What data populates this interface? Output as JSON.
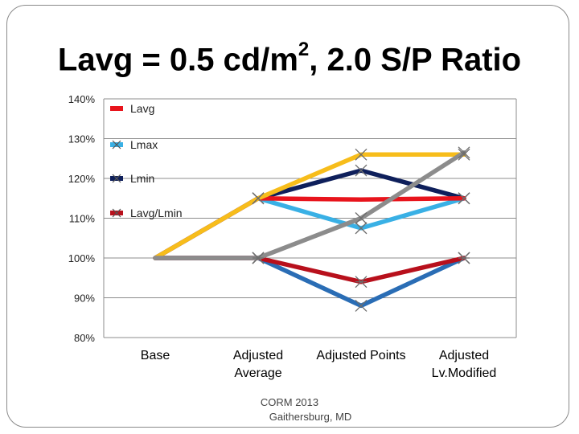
{
  "slide": {
    "title_main": "Lavg = 0.5 cd/m",
    "title_sup": "2",
    "title_rest": ", 2.0 S/P Ratio",
    "footer_line1": "CORM 2013",
    "footer_line2": "Gaithersburg, MD"
  },
  "chart_data": {
    "type": "line",
    "title": "Lavg = 0.5 cd/m2, 2.0 S/P Ratio",
    "xlabel": "",
    "ylabel": "",
    "categories": [
      [
        "Base"
      ],
      [
        "Adjusted",
        "Average"
      ],
      [
        "Adjusted Points"
      ],
      [
        "Adjusted",
        "Lv.Modified"
      ]
    ],
    "ylim": [
      0.8,
      1.4
    ],
    "yticks": [
      0.8,
      0.9,
      1.0,
      1.1,
      1.2,
      1.3,
      1.4
    ],
    "ytick_labels": [
      "80%",
      "90%",
      "100%",
      "110%",
      "120%",
      "130%",
      "140%"
    ],
    "grid": true,
    "legend": "top-left",
    "legend_series": [
      "Lavg",
      "Lmax",
      "Lmin",
      "Lavg/Lmin"
    ],
    "series": [
      {
        "name": "Lavg",
        "color": "#e8141c",
        "marker": "none",
        "legend": true,
        "values": [
          1.0,
          1.15,
          1.147,
          1.15
        ]
      },
      {
        "name": "Lmax",
        "color": "#39b0e5",
        "marker": "x",
        "legend": true,
        "values": [
          1.0,
          1.15,
          1.075,
          1.15
        ]
      },
      {
        "name": "Lmin",
        "color": "#0e1f5b",
        "marker": "x",
        "legend": true,
        "values": [
          1.0,
          1.15,
          1.22,
          1.15
        ]
      },
      {
        "name": "Lavg/Lmin",
        "color": "#b8101c",
        "marker": "star",
        "legend": true,
        "values": [
          1.0,
          1.0,
          0.94,
          1.0
        ]
      },
      {
        "name": "",
        "color": "#2a6db5",
        "marker": "x",
        "legend": false,
        "values": [
          1.0,
          1.0,
          0.88,
          1.0
        ]
      },
      {
        "name": "",
        "color": "#f7bd1b",
        "marker": "x",
        "legend": false,
        "values": [
          1.0,
          1.15,
          1.26,
          1.26
        ]
      },
      {
        "name": "",
        "color": "#8c8c8c",
        "marker": "x",
        "legend": false,
        "values": [
          1.0,
          1.0,
          1.1,
          1.265
        ]
      }
    ]
  }
}
